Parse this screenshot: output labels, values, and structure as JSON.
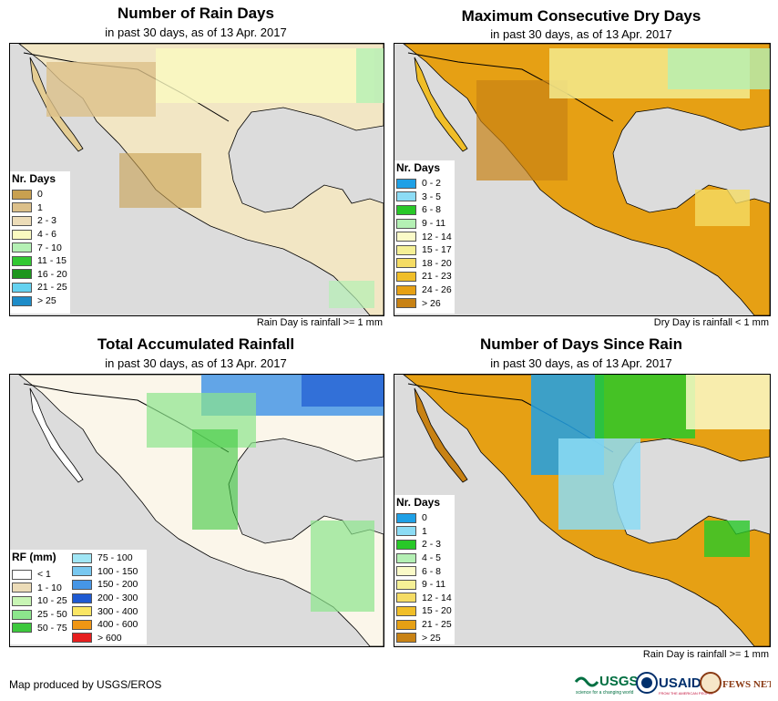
{
  "footer": {
    "credit": "Map produced by USGS/EROS"
  },
  "logos": {
    "usgs": "USGS",
    "usaid": "USAID",
    "fewsnet": "FEWS NET",
    "usgs_tagline": "science for a changing world",
    "usaid_tagline": "FROM THE AMERICAN PEOPLE"
  },
  "panels": {
    "rain_days": {
      "title": "Number of Rain Days",
      "subtitle": "in past 30 days, as of 13 Apr. 2017",
      "note": "Rain Day is rainfall >= 1 mm",
      "legend_title": "Nr. Days",
      "legend": [
        {
          "label": "0",
          "color": "#c8a050"
        },
        {
          "label": "1",
          "color": "#dcc08a"
        },
        {
          "label": "2 - 3",
          "color": "#ecdcb8"
        },
        {
          "label": "4 - 6",
          "color": "#fafac0"
        },
        {
          "label": "7 - 10",
          "color": "#b4f0b4"
        },
        {
          "label": "11 - 15",
          "color": "#32c832"
        },
        {
          "label": "16 - 20",
          "color": "#1e961e"
        },
        {
          "label": "21 - 25",
          "color": "#64d2f0"
        },
        {
          "label": "> 25",
          "color": "#1e8cc8"
        }
      ]
    },
    "dry_days": {
      "title": "Maximum Consecutive Dry Days",
      "subtitle": "in past 30 days, as of 13 Apr. 2017",
      "note": "Dry Day is rainfall < 1 mm",
      "legend_title": "Nr. Days",
      "legend": [
        {
          "label": "0 - 2",
          "color": "#1ea0e6"
        },
        {
          "label": "3 - 5",
          "color": "#8cdcf5"
        },
        {
          "label": "6 - 8",
          "color": "#28c828"
        },
        {
          "label": "9 - 11",
          "color": "#b4f0b4"
        },
        {
          "label": "12 - 14",
          "color": "#fafac8"
        },
        {
          "label": "15 - 17",
          "color": "#f5f096"
        },
        {
          "label": "18 - 20",
          "color": "#f5dc64"
        },
        {
          "label": "21 - 23",
          "color": "#f0be28"
        },
        {
          "label": "24 - 26",
          "color": "#e6a014"
        },
        {
          "label": "> 26",
          "color": "#c88214"
        }
      ]
    },
    "rainfall": {
      "title": "Total Accumulated Rainfall",
      "subtitle": "in past 30 days, as of 13 Apr. 2017",
      "legend_title": "RF (mm)",
      "legend_left": [
        {
          "label": "< 1",
          "color": "#ffffff"
        },
        {
          "label": "1 - 10",
          "color": "#ecdcb8"
        },
        {
          "label": "10 - 25",
          "color": "#c8f5b4"
        },
        {
          "label": "25 - 50",
          "color": "#8ce68c"
        },
        {
          "label": "50 - 75",
          "color": "#3cc83c"
        }
      ],
      "legend_right": [
        {
          "label": "75 - 100",
          "color": "#a0e6f5"
        },
        {
          "label": "100 - 150",
          "color": "#78c8f0"
        },
        {
          "label": "150 - 200",
          "color": "#4696e6"
        },
        {
          "label": "200 - 300",
          "color": "#1e5ad2"
        },
        {
          "label": "300 - 400",
          "color": "#fae664"
        },
        {
          "label": "400 - 600",
          "color": "#f09614"
        },
        {
          "label": "> 600",
          "color": "#e61e1e"
        }
      ]
    },
    "days_since": {
      "title": "Number of Days Since Rain",
      "subtitle": "in past 30 days, as of 13 Apr. 2017",
      "note": "Rain Day is rainfall >= 1 mm",
      "legend_title": "Nr. Days",
      "legend": [
        {
          "label": "0",
          "color": "#1ea0e6"
        },
        {
          "label": "1",
          "color": "#8cdcf5"
        },
        {
          "label": "2 - 3",
          "color": "#28c828"
        },
        {
          "label": "4 - 5",
          "color": "#b4f0b4"
        },
        {
          "label": "6 - 8",
          "color": "#fafac8"
        },
        {
          "label": "9 - 11",
          "color": "#f5f096"
        },
        {
          "label": "12 - 14",
          "color": "#f5dc64"
        },
        {
          "label": "15 - 20",
          "color": "#f0be28"
        },
        {
          "label": "21 - 25",
          "color": "#e6a014"
        },
        {
          "label": "> 25",
          "color": "#c88214"
        }
      ]
    }
  }
}
